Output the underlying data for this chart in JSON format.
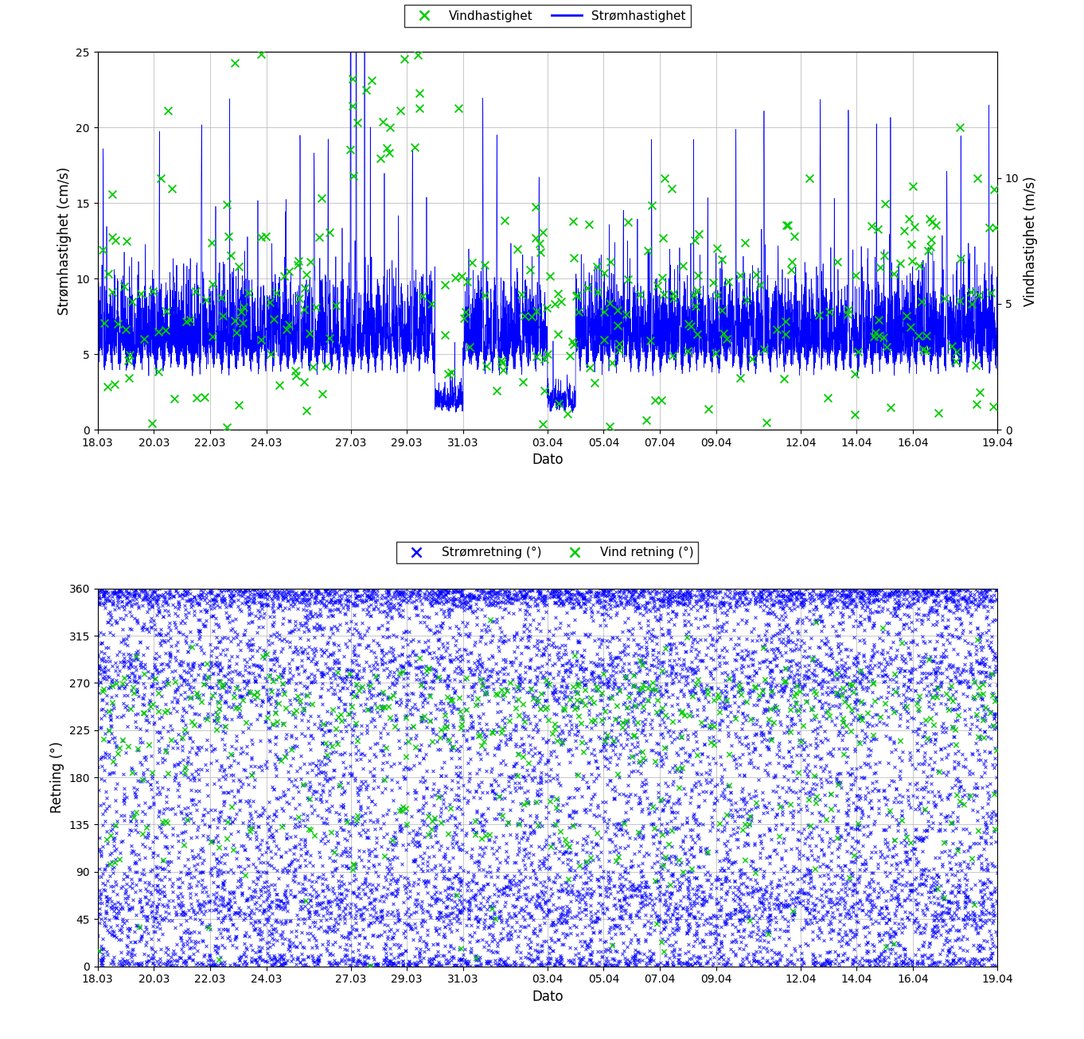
{
  "top_panel": {
    "ylabel_left": "Strømhastighet (cm/s)",
    "ylabel_right": "Vindhastighet (m/s)",
    "xlabel": "Dato",
    "ylim_left": [
      0,
      25
    ],
    "ylim_right": [
      0,
      15
    ],
    "yticks_left": [
      0,
      5,
      10,
      15,
      20,
      25
    ],
    "yticks_right": [
      0,
      5,
      10
    ],
    "current_color": "#0000ff",
    "wind_color": "#00cc00",
    "legend_labels": [
      "Vindhastighet",
      "Strømhastighet"
    ]
  },
  "bottom_panel": {
    "ylabel": "Retning (°)",
    "xlabel": "Dato",
    "ylim": [
      0,
      360
    ],
    "yticks": [
      0,
      45,
      90,
      135,
      180,
      225,
      270,
      315,
      360
    ],
    "current_dir_color": "#0000ff",
    "wind_dir_color": "#00cc00",
    "legend_labels": [
      "Strømretning (°)",
      "Vind retning (°)"
    ]
  },
  "xtick_labels": [
    "18.03",
    "20.03",
    "22.03",
    "24.03",
    "27.03",
    "29.03",
    "31.03",
    "03.04",
    "05.04",
    "07.04",
    "09.04",
    "12.04",
    "14.04",
    "16.04",
    "19.04"
  ],
  "xtick_positions": [
    0,
    2,
    4,
    6,
    9,
    11,
    13,
    16,
    18,
    20,
    22,
    25,
    27,
    29,
    32
  ],
  "total_days": 32,
  "background_color": "#ffffff",
  "grid_color": "#b0b0b0",
  "figsize": [
    13.62,
    13.06
  ],
  "dpi": 100
}
